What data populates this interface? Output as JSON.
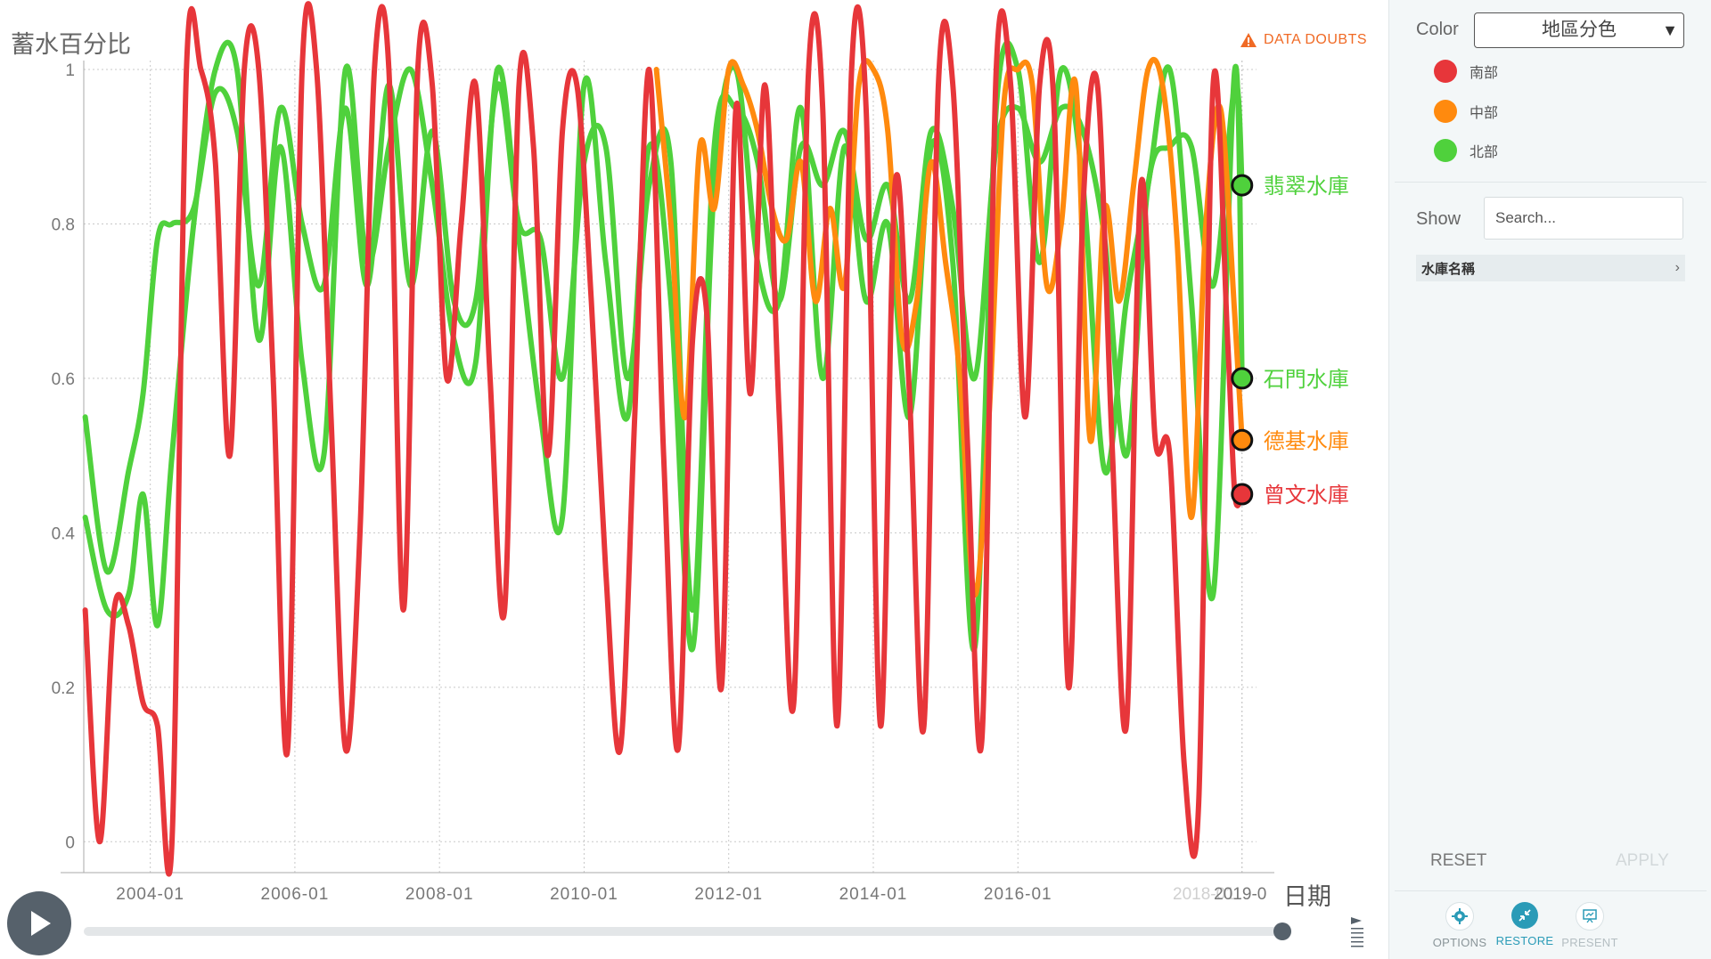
{
  "chart_data": {
    "type": "line",
    "ylabel": "蓄水百分比",
    "xlabel": "日期",
    "ylim": [
      -0.04,
      1.0
    ],
    "yticks": [
      0,
      0.2,
      0.4,
      0.6,
      0.8,
      1
    ],
    "ytick_labels": [
      "0",
      "0.2",
      "0.4",
      "0.6",
      "0.8",
      "1"
    ],
    "xlim": [
      2003.08,
      2019.3
    ],
    "xticks": [
      2004.0,
      2006.0,
      2008.0,
      2010.0,
      2012.0,
      2014.0,
      2016.0
    ],
    "xtick_labels": [
      "2004-01",
      "2006-01",
      "2008-01",
      "2010-01",
      "2012-01",
      "2014-01",
      "2016-01"
    ],
    "current_marker_x": 2019.1,
    "current_marker_labels": [
      "2018-01",
      "2019-0"
    ],
    "grid": true,
    "series": [
      {
        "name": "翡翠水庫",
        "region": "北部",
        "color": "#4fd13c",
        "current_value": 0.85,
        "x": [
          2003.1,
          2003.4,
          2003.7,
          2003.9,
          2004.1,
          2004.3,
          2004.6,
          2004.9,
          2005.2,
          2005.5,
          2005.8,
          2006.1,
          2006.4,
          2006.7,
          2007.0,
          2007.3,
          2007.6,
          2007.9,
          2008.2,
          2008.5,
          2008.8,
          2009.1,
          2009.4,
          2009.7,
          2010.0,
          2010.3,
          2010.6,
          2010.9,
          2011.2,
          2011.5,
          2011.8,
          2012.1,
          2012.4,
          2012.7,
          2013.0,
          2013.3,
          2013.6,
          2013.9,
          2014.2,
          2014.5,
          2014.8,
          2015.1,
          2015.4,
          2015.7,
          2016.0,
          2016.3,
          2016.6,
          2016.9,
          2017.2,
          2017.5,
          2017.8,
          2018.1,
          2018.4,
          2018.7,
          2019.0,
          2019.1
        ],
        "values": [
          0.55,
          0.35,
          0.48,
          0.58,
          0.78,
          0.8,
          0.82,
          0.97,
          0.92,
          0.72,
          0.95,
          0.8,
          0.72,
          0.95,
          0.72,
          0.98,
          0.72,
          0.92,
          0.7,
          0.7,
          0.98,
          0.8,
          0.78,
          0.6,
          0.88,
          0.9,
          0.6,
          0.85,
          0.88,
          0.3,
          0.9,
          0.95,
          0.88,
          0.7,
          0.9,
          0.85,
          0.92,
          0.78,
          0.85,
          0.7,
          0.92,
          0.82,
          0.6,
          0.9,
          0.95,
          0.88,
          0.95,
          0.92,
          0.78,
          0.5,
          0.85,
          0.9,
          0.9,
          0.72,
          0.98,
          0.85
        ]
      },
      {
        "name": "石門水庫",
        "region": "北部",
        "color": "#4fd13c",
        "current_value": 0.6,
        "x": [
          2003.1,
          2003.4,
          2003.7,
          2003.9,
          2004.1,
          2004.3,
          2004.6,
          2004.9,
          2005.2,
          2005.5,
          2005.8,
          2006.1,
          2006.4,
          2006.7,
          2007.0,
          2007.3,
          2007.6,
          2007.9,
          2008.2,
          2008.5,
          2008.8,
          2009.1,
          2009.4,
          2009.7,
          2010.0,
          2010.3,
          2010.6,
          2010.9,
          2011.2,
          2011.5,
          2011.8,
          2012.1,
          2012.4,
          2012.7,
          2013.0,
          2013.3,
          2013.6,
          2013.9,
          2014.2,
          2014.5,
          2014.8,
          2015.1,
          2015.4,
          2015.7,
          2016.0,
          2016.3,
          2016.6,
          2016.9,
          2017.2,
          2017.5,
          2017.8,
          2018.1,
          2018.4,
          2018.7,
          2019.0,
          2019.1
        ],
        "values": [
          0.42,
          0.3,
          0.32,
          0.45,
          0.28,
          0.5,
          0.8,
          1.0,
          1.0,
          0.65,
          0.9,
          0.62,
          0.5,
          1.0,
          0.75,
          0.9,
          1.0,
          0.85,
          0.65,
          0.62,
          1.0,
          0.78,
          0.55,
          0.42,
          0.98,
          0.75,
          0.55,
          0.9,
          0.7,
          0.25,
          0.85,
          1.0,
          0.75,
          0.7,
          0.95,
          0.6,
          0.9,
          0.7,
          0.8,
          0.55,
          0.9,
          0.75,
          0.25,
          0.95,
          1.0,
          0.75,
          1.0,
          0.85,
          0.48,
          0.7,
          0.85,
          1.0,
          0.7,
          0.32,
          1.0,
          0.6
        ]
      },
      {
        "name": "德基水庫",
        "region": "中部",
        "color": "#ff8a0e",
        "current_value": 0.52,
        "x": [
          2011.0,
          2011.2,
          2011.4,
          2011.6,
          2011.8,
          2012.0,
          2012.2,
          2012.4,
          2012.6,
          2012.8,
          2013.0,
          2013.2,
          2013.4,
          2013.6,
          2013.8,
          2014.0,
          2014.2,
          2014.4,
          2014.6,
          2014.8,
          2015.0,
          2015.2,
          2015.4,
          2015.6,
          2015.8,
          2016.0,
          2016.2,
          2016.4,
          2016.6,
          2016.8,
          2017.0,
          2017.2,
          2017.4,
          2017.6,
          2017.8,
          2018.0,
          2018.2,
          2018.4,
          2018.6,
          2018.8,
          2019.0,
          2019.1
        ],
        "values": [
          1.0,
          0.8,
          0.55,
          0.9,
          0.82,
          1.0,
          0.98,
          0.92,
          0.82,
          0.78,
          0.88,
          0.7,
          0.82,
          0.72,
          0.98,
          1.0,
          0.92,
          0.65,
          0.7,
          0.88,
          0.75,
          0.6,
          0.32,
          0.55,
          0.95,
          1.0,
          0.98,
          0.72,
          0.8,
          0.98,
          0.52,
          0.82,
          0.7,
          0.85,
          1.0,
          0.98,
          0.78,
          0.42,
          0.8,
          0.95,
          0.68,
          0.52
        ]
      },
      {
        "name": "曾文水庫",
        "region": "南部",
        "color": "#e7363a",
        "current_value": 0.45,
        "x": [
          2003.1,
          2003.3,
          2003.5,
          2003.7,
          2003.9,
          2004.1,
          2004.3,
          2004.5,
          2004.7,
          2004.9,
          2005.1,
          2005.3,
          2005.5,
          2005.7,
          2005.9,
          2006.1,
          2006.3,
          2006.5,
          2006.7,
          2006.9,
          2007.1,
          2007.3,
          2007.5,
          2007.7,
          2007.9,
          2008.1,
          2008.3,
          2008.5,
          2008.7,
          2008.9,
          2009.1,
          2009.3,
          2009.5,
          2009.7,
          2009.9,
          2010.1,
          2010.3,
          2010.5,
          2010.7,
          2010.9,
          2011.1,
          2011.3,
          2011.5,
          2011.7,
          2011.9,
          2012.1,
          2012.3,
          2012.5,
          2012.7,
          2012.9,
          2013.1,
          2013.3,
          2013.5,
          2013.7,
          2013.9,
          2014.1,
          2014.3,
          2014.5,
          2014.7,
          2014.9,
          2015.1,
          2015.3,
          2015.5,
          2015.7,
          2015.9,
          2016.1,
          2016.3,
          2016.5,
          2016.7,
          2016.9,
          2017.1,
          2017.3,
          2017.5,
          2017.7,
          2017.9,
          2018.1,
          2018.3,
          2018.5,
          2018.7,
          2018.9,
          2019.0,
          2019.1
        ],
        "values": [
          0.3,
          0.0,
          0.3,
          0.28,
          0.18,
          0.15,
          0.0,
          1.0,
          1.0,
          0.88,
          0.5,
          1.0,
          1.0,
          0.6,
          0.12,
          1.0,
          1.0,
          0.55,
          0.12,
          0.4,
          1.0,
          1.0,
          0.3,
          1.0,
          0.98,
          0.6,
          0.8,
          0.98,
          0.6,
          0.3,
          0.98,
          0.9,
          0.5,
          0.92,
          0.98,
          0.7,
          0.35,
          0.12,
          0.55,
          1.0,
          0.5,
          0.12,
          0.65,
          0.68,
          0.2,
          0.95,
          0.58,
          0.98,
          0.55,
          0.18,
          0.99,
          0.95,
          0.15,
          1.0,
          0.95,
          0.15,
          0.85,
          0.58,
          0.15,
          0.98,
          0.98,
          0.52,
          0.13,
          1.0,
          0.98,
          0.55,
          0.98,
          0.95,
          0.2,
          0.82,
          0.98,
          0.52,
          0.15,
          0.85,
          0.52,
          0.5,
          0.1,
          0.05,
          0.98,
          0.65,
          0.45,
          0.45
        ]
      }
    ]
  },
  "warning": {
    "label": "DATA DOUBTS",
    "color": "#f06a25"
  },
  "timeline": {
    "slider_value": 1.0,
    "speed_icon": "speed-icon",
    "play_icon": "play-icon"
  },
  "side_panel": {
    "color_label": "Color",
    "color_select_value": "地區分色",
    "legend": [
      {
        "label": "南部",
        "color": "#e7363a"
      },
      {
        "label": "中部",
        "color": "#ff8a0e"
      },
      {
        "label": "北部",
        "color": "#4fd13c"
      }
    ],
    "show_label": "Show",
    "search_placeholder": "Search...",
    "field_label": "水庫名稱",
    "reset_label": "RESET",
    "apply_label": "APPLY",
    "buttons": [
      {
        "label": "OPTIONS",
        "icon": "gear-icon"
      },
      {
        "label": "RESTORE",
        "icon": "restore-icon"
      },
      {
        "label": "PRESENT",
        "icon": "present-icon"
      }
    ]
  }
}
